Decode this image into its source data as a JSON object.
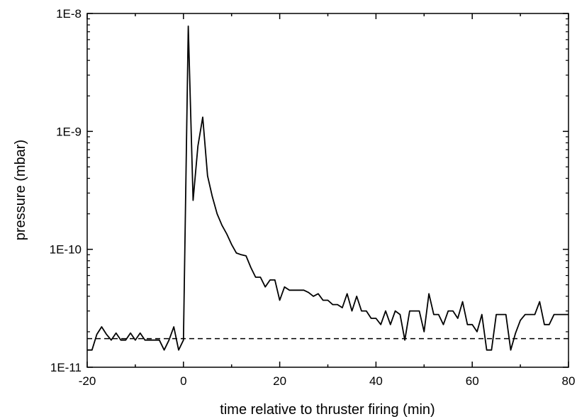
{
  "chart_data": {
    "type": "line",
    "title": "",
    "xlabel": "time relative to thruster firing (min)",
    "ylabel": "pressure (mbar)",
    "xlim": [
      -20,
      80
    ],
    "ylim": [
      1e-11,
      1e-08
    ],
    "yscale": "log",
    "grid": false,
    "legend": "none",
    "x_ticks": [
      -20,
      0,
      20,
      40,
      60,
      80
    ],
    "x_tick_labels": [
      "-20",
      "0",
      "20",
      "40",
      "60",
      "80"
    ],
    "y_ticks": [
      1e-11,
      1e-10,
      1e-09,
      1e-08
    ],
    "y_tick_labels": [
      "1E-11",
      "1E-10",
      "1E-9",
      "1E-8"
    ],
    "series": [
      {
        "style": "solid",
        "color": "#000000",
        "x": [
          -20,
          -19,
          -18,
          -17,
          -16,
          -15,
          -14,
          -13,
          -12,
          -11,
          -10,
          -9,
          -8,
          -7,
          -6,
          -5,
          -4,
          -3,
          -2,
          -1,
          0,
          1,
          2,
          3,
          4,
          5,
          6,
          7,
          8,
          9,
          10,
          11,
          12,
          13,
          14,
          15,
          16,
          17,
          18,
          19,
          20,
          21,
          22,
          23,
          24,
          25,
          26,
          27,
          28,
          29,
          30,
          31,
          32,
          33,
          34,
          35,
          36,
          37,
          38,
          39,
          40,
          41,
          42,
          43,
          44,
          45,
          46,
          47,
          48,
          49,
          50,
          51,
          52,
          53,
          54,
          55,
          56,
          57,
          58,
          59,
          60,
          61,
          62,
          63,
          64,
          65,
          66,
          67,
          68,
          69,
          70,
          71,
          72,
          73,
          74,
          75,
          76,
          77,
          78,
          79,
          80
        ],
        "y": [
          1.4e-11,
          1.4e-11,
          1.9e-11,
          2.2e-11,
          1.9e-11,
          1.7e-11,
          1.95e-11,
          1.7e-11,
          1.7e-11,
          1.95e-11,
          1.7e-11,
          1.95e-11,
          1.7e-11,
          1.7e-11,
          1.7e-11,
          1.7e-11,
          1.4e-11,
          1.7e-11,
          2.2e-11,
          1.4e-11,
          1.7e-11,
          7.8e-09,
          2.6e-10,
          7.5e-10,
          1.32e-09,
          4.2e-10,
          2.8e-10,
          2e-10,
          1.6e-10,
          1.35e-10,
          1.1e-10,
          9.3e-11,
          9e-11,
          8.8e-11,
          7e-11,
          5.8e-11,
          5.8e-11,
          4.8e-11,
          5.5e-11,
          5.5e-11,
          3.7e-11,
          4.8e-11,
          4.5e-11,
          4.5e-11,
          4.5e-11,
          4.5e-11,
          4.3e-11,
          4e-11,
          4.2e-11,
          3.7e-11,
          3.7e-11,
          3.4e-11,
          3.4e-11,
          3.2e-11,
          4.2e-11,
          3e-11,
          4e-11,
          3e-11,
          3e-11,
          2.6e-11,
          2.6e-11,
          2.3e-11,
          3e-11,
          2.3e-11,
          3e-11,
          2.8e-11,
          1.7e-11,
          3e-11,
          3e-11,
          3e-11,
          2e-11,
          4.2e-11,
          2.8e-11,
          2.8e-11,
          2.3e-11,
          3e-11,
          3e-11,
          2.6e-11,
          3.6e-11,
          2.3e-11,
          2.3e-11,
          2e-11,
          2.8e-11,
          1.4e-11,
          1.4e-11,
          2.8e-11,
          2.8e-11,
          2.8e-11,
          1.4e-11,
          1.95e-11,
          2.5e-11,
          2.8e-11,
          2.8e-11,
          2.8e-11,
          3.6e-11,
          2.3e-11,
          2.3e-11,
          2.8e-11,
          2.8e-11,
          2.8e-11,
          2.8e-11
        ]
      },
      {
        "style": "dashed",
        "color": "#000000",
        "x": [
          -20,
          80
        ],
        "y": [
          1.75e-11,
          1.75e-11
        ]
      }
    ]
  }
}
